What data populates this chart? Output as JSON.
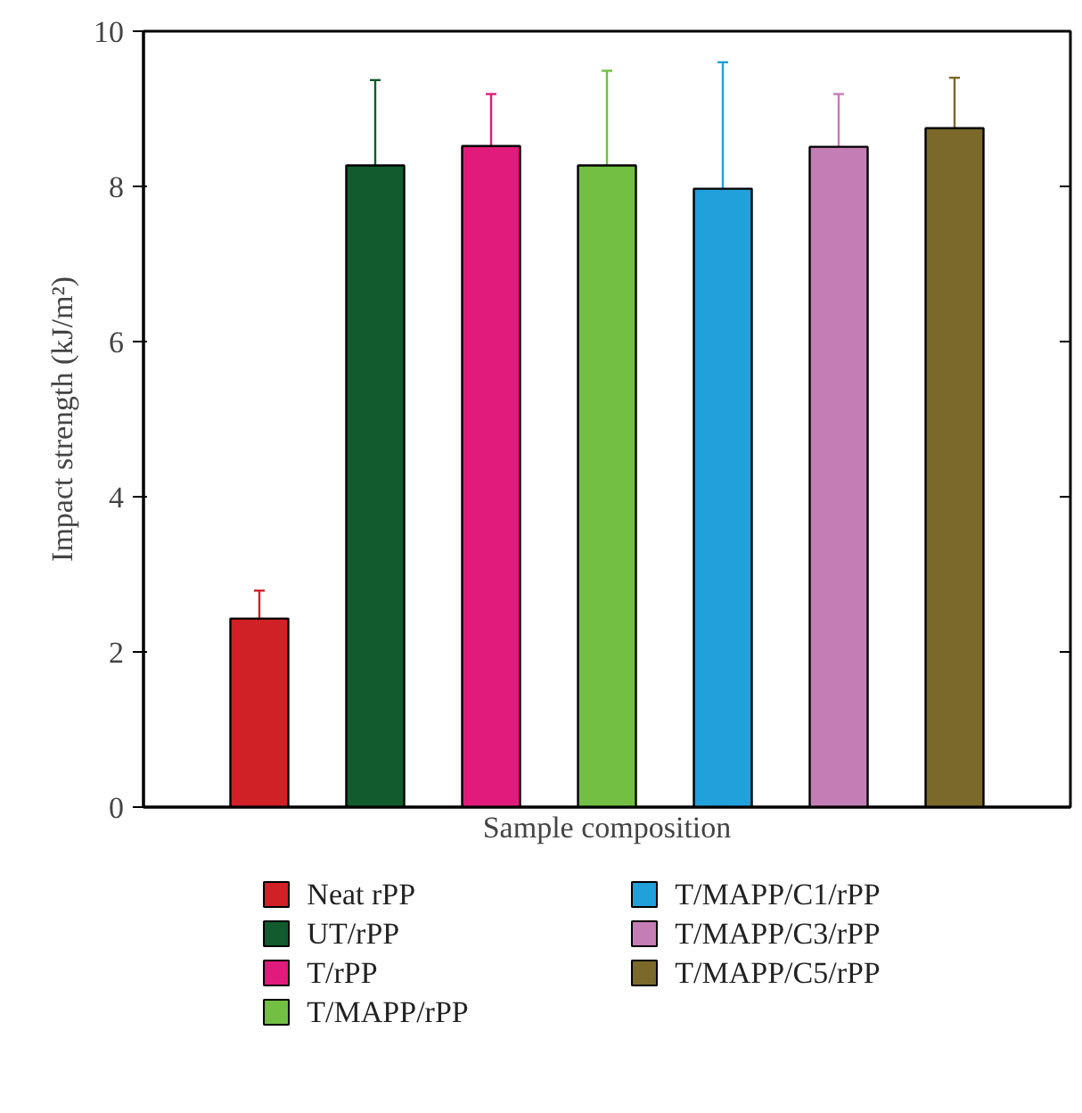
{
  "chart_data": {
    "type": "bar",
    "xlabel": "Sample composition",
    "ylabel": "Impact strength (kJ/m²)",
    "categories": [
      null,
      null,
      null,
      null,
      null,
      null,
      null
    ],
    "series": [
      {
        "name": "Neat rPP",
        "color": "#d02127",
        "values": [
          2.43,
          null,
          null,
          null,
          null,
          null,
          null
        ],
        "errors": [
          [
            2.43,
            2.79
          ],
          null,
          null,
          null,
          null,
          null,
          null
        ]
      },
      {
        "name": "UT/rPP",
        "color": "#125b2e",
        "values": [
          null,
          8.27,
          null,
          null,
          null,
          null,
          null
        ],
        "errors": [
          null,
          [
            8.27,
            9.37
          ],
          null,
          null,
          null,
          null,
          null
        ]
      },
      {
        "name": "T/rPP",
        "color": "#e01b7b",
        "values": [
          null,
          null,
          8.52,
          null,
          null,
          null,
          null
        ],
        "errors": [
          null,
          null,
          [
            8.52,
            9.19
          ],
          null,
          null,
          null,
          null
        ]
      },
      {
        "name": "T/MAPP/rPP",
        "color": "#72bf44",
        "values": [
          null,
          null,
          null,
          8.27,
          null,
          null,
          null
        ],
        "errors": [
          null,
          null,
          null,
          [
            8.27,
            9.49
          ],
          null,
          null,
          null
        ]
      },
      {
        "name": "T/MAPP/C1/rPP",
        "color": "#21a0db",
        "values": [
          null,
          null,
          null,
          null,
          7.97,
          null,
          null
        ],
        "errors": [
          null,
          null,
          null,
          null,
          [
            7.97,
            9.6
          ],
          null,
          null
        ]
      },
      {
        "name": "T/MAPP/C3/rPP",
        "color": "#c57eb5",
        "values": [
          null,
          null,
          null,
          null,
          null,
          8.51,
          null
        ],
        "errors": [
          null,
          null,
          null,
          null,
          null,
          [
            8.51,
            9.19
          ],
          null
        ]
      },
      {
        "name": "T/MAPP/C5/rPP",
        "color": "#7b692b",
        "values": [
          null,
          null,
          null,
          null,
          null,
          null,
          8.75
        ],
        "errors": [
          null,
          null,
          null,
          null,
          null,
          null,
          [
            8.75,
            9.4
          ]
        ]
      }
    ],
    "ylim": [
      0,
      10
    ],
    "yticks": [
      0,
      2,
      4,
      6,
      8,
      10
    ],
    "grid": false,
    "legend": "bottom"
  }
}
